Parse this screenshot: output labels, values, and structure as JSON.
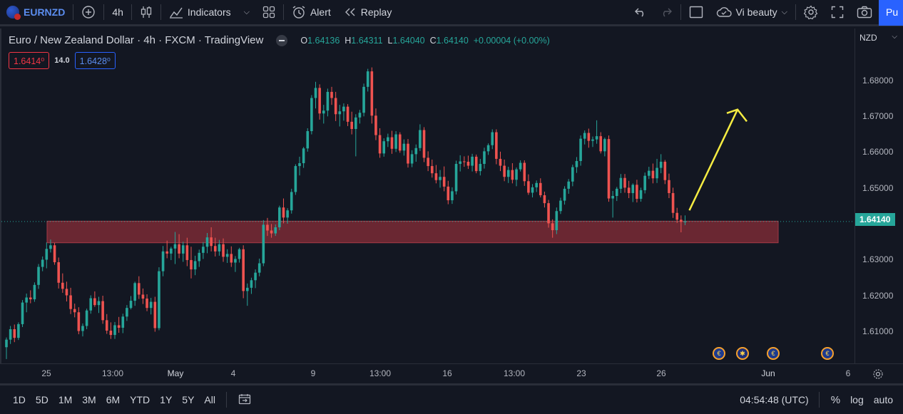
{
  "toolbar": {
    "symbol": "EURNZD",
    "interval": "4h",
    "indicators_label": "Indicators",
    "alert_label": "Alert",
    "replay_label": "Replay",
    "layout_name": "Vi beauty",
    "publish_label": "Pu"
  },
  "legend": {
    "title": "Euro / New Zealand Dollar · 4h · FXCM · TradingView",
    "o_label": "O",
    "o_value": "1.64136",
    "h_label": "H",
    "h_value": "1.64311",
    "l_label": "L",
    "l_value": "1.64040",
    "c_label": "C",
    "c_value": "1.64140",
    "change": "+0.00004 (+0.00%)",
    "sell_price": "1.6414⁰",
    "spread": "14.0",
    "buy_price": "1.6428⁰"
  },
  "price_axis": {
    "currency": "NZD",
    "current_price": "1.64140",
    "labels": [
      "1.68000",
      "1.67000",
      "1.66000",
      "1.65000",
      "1.63000",
      "1.62000",
      "1.61000"
    ]
  },
  "time_axis": {
    "labels": [
      "25",
      "13:00",
      "May",
      "4",
      "9",
      "13:00",
      "16",
      "13:00",
      "23",
      "26",
      "Jun",
      "6"
    ]
  },
  "bottom_bar": {
    "ranges": [
      "1D",
      "5D",
      "1M",
      "3M",
      "6M",
      "YTD",
      "1Y",
      "5Y",
      "All"
    ],
    "clock": "04:54:48 (UTC)",
    "percent_label": "%",
    "log_label": "log",
    "auto_label": "auto"
  },
  "colors": {
    "up": "#26a69a",
    "down": "#ef5350",
    "zone": "#7a2a35",
    "arrow": "#f5ec42",
    "accent": "#2962ff"
  },
  "chart_data": {
    "type": "candlestick",
    "symbol": "EURNZD",
    "ylim": [
      1.602,
      1.695
    ],
    "zone": [
      1.6355,
      1.6415
    ],
    "last_close": 1.6414,
    "candles": [
      [
        1.6065,
        1.6092,
        1.6032,
        1.6086
      ],
      [
        1.6086,
        1.6124,
        1.6074,
        1.6115
      ],
      [
        1.6115,
        1.6128,
        1.6079,
        1.6091
      ],
      [
        1.6091,
        1.6134,
        1.6085,
        1.6129
      ],
      [
        1.6129,
        1.6196,
        1.6121,
        1.6189
      ],
      [
        1.6189,
        1.6214,
        1.6162,
        1.6203
      ],
      [
        1.6203,
        1.6223,
        1.6187,
        1.6198
      ],
      [
        1.6198,
        1.6245,
        1.6191,
        1.6238
      ],
      [
        1.6238,
        1.6296,
        1.6227,
        1.6288
      ],
      [
        1.6288,
        1.6317,
        1.6276,
        1.6308
      ],
      [
        1.6308,
        1.6356,
        1.6284,
        1.6338
      ],
      [
        1.6338,
        1.6364,
        1.6328,
        1.6348
      ],
      [
        1.6348,
        1.6355,
        1.6294,
        1.6301
      ],
      [
        1.6301,
        1.6314,
        1.6228,
        1.6244
      ],
      [
        1.6244,
        1.627,
        1.6216,
        1.6227
      ],
      [
        1.6227,
        1.6247,
        1.6192,
        1.6209
      ],
      [
        1.6209,
        1.623,
        1.6157,
        1.6171
      ],
      [
        1.6171,
        1.6186,
        1.6148,
        1.6162
      ],
      [
        1.6162,
        1.6176,
        1.6101,
        1.611
      ],
      [
        1.611,
        1.6131,
        1.6095,
        1.6124
      ],
      [
        1.6124,
        1.6172,
        1.6115,
        1.6167
      ],
      [
        1.6167,
        1.6209,
        1.6158,
        1.6201
      ],
      [
        1.6201,
        1.622,
        1.6177,
        1.6182
      ],
      [
        1.6182,
        1.6205,
        1.616,
        1.6193
      ],
      [
        1.6193,
        1.6208,
        1.613,
        1.614
      ],
      [
        1.614,
        1.6157,
        1.6102,
        1.6111
      ],
      [
        1.6111,
        1.6134,
        1.6088,
        1.6099
      ],
      [
        1.6099,
        1.6135,
        1.6088,
        1.6126
      ],
      [
        1.6126,
        1.6149,
        1.6105,
        1.6119
      ],
      [
        1.6119,
        1.6158,
        1.6104,
        1.615
      ],
      [
        1.615,
        1.6182,
        1.6138,
        1.6174
      ],
      [
        1.6174,
        1.6207,
        1.617,
        1.6194
      ],
      [
        1.6194,
        1.6247,
        1.618,
        1.6243
      ],
      [
        1.6243,
        1.6262,
        1.6199,
        1.6211
      ],
      [
        1.6211,
        1.6228,
        1.6185,
        1.62
      ],
      [
        1.62,
        1.6212,
        1.6165,
        1.6174
      ],
      [
        1.6174,
        1.6202,
        1.6156,
        1.6191
      ],
      [
        1.6191,
        1.6205,
        1.6108,
        1.6118
      ],
      [
        1.6118,
        1.6287,
        1.6112,
        1.6276
      ],
      [
        1.6276,
        1.6346,
        1.6262,
        1.6331
      ],
      [
        1.6331,
        1.6361,
        1.6312,
        1.6325
      ],
      [
        1.6325,
        1.6344,
        1.6307,
        1.6339
      ],
      [
        1.6339,
        1.6385,
        1.6296,
        1.6351
      ],
      [
        1.6351,
        1.6379,
        1.6312,
        1.6325
      ],
      [
        1.6325,
        1.6358,
        1.6302,
        1.6348
      ],
      [
        1.6348,
        1.6369,
        1.629,
        1.6307
      ],
      [
        1.6307,
        1.6344,
        1.6256,
        1.6281
      ],
      [
        1.6281,
        1.6319,
        1.6265,
        1.6304
      ],
      [
        1.6304,
        1.6336,
        1.6288,
        1.6327
      ],
      [
        1.6327,
        1.6357,
        1.631,
        1.6344
      ],
      [
        1.6344,
        1.6382,
        1.6326,
        1.637
      ],
      [
        1.637,
        1.6398,
        1.6331,
        1.6346
      ],
      [
        1.6346,
        1.6369,
        1.6317,
        1.6331
      ],
      [
        1.6331,
        1.6363,
        1.6319,
        1.6351
      ],
      [
        1.6351,
        1.6367,
        1.6302,
        1.6316
      ],
      [
        1.6316,
        1.6337,
        1.6299,
        1.6324
      ],
      [
        1.6324,
        1.6345,
        1.6288,
        1.63
      ],
      [
        1.63,
        1.6318,
        1.6274,
        1.631
      ],
      [
        1.631,
        1.6341,
        1.63,
        1.6337
      ],
      [
        1.6337,
        1.6348,
        1.6201,
        1.6221
      ],
      [
        1.6221,
        1.6242,
        1.618,
        1.623
      ],
      [
        1.623,
        1.6258,
        1.6213,
        1.6251
      ],
      [
        1.6251,
        1.6281,
        1.6229,
        1.6272
      ],
      [
        1.6272,
        1.6311,
        1.6262,
        1.6298
      ],
      [
        1.6298,
        1.6418,
        1.629,
        1.6405
      ],
      [
        1.6405,
        1.6424,
        1.6374,
        1.6389
      ],
      [
        1.6389,
        1.6407,
        1.6369,
        1.6381
      ],
      [
        1.6381,
        1.6406,
        1.6374,
        1.6398
      ],
      [
        1.6398,
        1.6458,
        1.639,
        1.6453
      ],
      [
        1.6453,
        1.6478,
        1.6409,
        1.6425
      ],
      [
        1.6425,
        1.6451,
        1.6408,
        1.6445
      ],
      [
        1.6445,
        1.6505,
        1.6436,
        1.6496
      ],
      [
        1.6496,
        1.6573,
        1.6488,
        1.6568
      ],
      [
        1.6568,
        1.6594,
        1.6542,
        1.6576
      ],
      [
        1.6576,
        1.6621,
        1.6563,
        1.6617
      ],
      [
        1.6617,
        1.6673,
        1.6608,
        1.6665
      ],
      [
        1.6665,
        1.6765,
        1.6656,
        1.6757
      ],
      [
        1.6757,
        1.6802,
        1.6728,
        1.6785
      ],
      [
        1.6785,
        1.6795,
        1.6697,
        1.6714
      ],
      [
        1.6714,
        1.6738,
        1.6686,
        1.6722
      ],
      [
        1.6722,
        1.6783,
        1.6706,
        1.6774
      ],
      [
        1.6774,
        1.6788,
        1.6738,
        1.6757
      ],
      [
        1.6757,
        1.6774,
        1.6693,
        1.6712
      ],
      [
        1.6712,
        1.6738,
        1.6678,
        1.672
      ],
      [
        1.672,
        1.6742,
        1.6694,
        1.6733
      ],
      [
        1.6733,
        1.674,
        1.6679,
        1.6691
      ],
      [
        1.6691,
        1.6719,
        1.6656,
        1.6671
      ],
      [
        1.6671,
        1.6712,
        1.6595,
        1.6703
      ],
      [
        1.6703,
        1.6724,
        1.6686,
        1.6716
      ],
      [
        1.6716,
        1.6797,
        1.6706,
        1.6788
      ],
      [
        1.6788,
        1.6838,
        1.6775,
        1.6831
      ],
      [
        1.6831,
        1.6842,
        1.6686,
        1.6708
      ],
      [
        1.6708,
        1.6728,
        1.664,
        1.6654
      ],
      [
        1.6654,
        1.6673,
        1.6591,
        1.6603
      ],
      [
        1.6603,
        1.6645,
        1.6594,
        1.6637
      ],
      [
        1.6637,
        1.6658,
        1.6621,
        1.6648
      ],
      [
        1.6648,
        1.6666,
        1.6602,
        1.6616
      ],
      [
        1.6616,
        1.6665,
        1.6607,
        1.6656
      ],
      [
        1.6656,
        1.6662,
        1.6605,
        1.6611
      ],
      [
        1.6611,
        1.6642,
        1.6597,
        1.663
      ],
      [
        1.663,
        1.6643,
        1.6564,
        1.6575
      ],
      [
        1.6575,
        1.6612,
        1.6565,
        1.6601
      ],
      [
        1.6601,
        1.6628,
        1.658,
        1.6618
      ],
      [
        1.6618,
        1.6684,
        1.661,
        1.6668
      ],
      [
        1.6668,
        1.6676,
        1.6579,
        1.6591
      ],
      [
        1.6591,
        1.6609,
        1.6554,
        1.6568
      ],
      [
        1.6568,
        1.6586,
        1.6536,
        1.6548
      ],
      [
        1.6548,
        1.6571,
        1.652,
        1.6529
      ],
      [
        1.6529,
        1.6557,
        1.6508,
        1.6538
      ],
      [
        1.6538,
        1.6567,
        1.6498,
        1.6511
      ],
      [
        1.6511,
        1.6527,
        1.6462,
        1.6473
      ],
      [
        1.6473,
        1.6509,
        1.6463,
        1.6498
      ],
      [
        1.6498,
        1.6583,
        1.6489,
        1.6574
      ],
      [
        1.6574,
        1.6598,
        1.6553,
        1.6581
      ],
      [
        1.6581,
        1.6595,
        1.6566,
        1.658
      ],
      [
        1.658,
        1.6597,
        1.656,
        1.6569
      ],
      [
        1.6569,
        1.6602,
        1.6553,
        1.6594
      ],
      [
        1.6594,
        1.66,
        1.6548,
        1.6554
      ],
      [
        1.6554,
        1.6588,
        1.6542,
        1.6574
      ],
      [
        1.6574,
        1.6619,
        1.6561,
        1.6609
      ],
      [
        1.6609,
        1.6631,
        1.6599,
        1.6626
      ],
      [
        1.6626,
        1.667,
        1.6615,
        1.6662
      ],
      [
        1.6662,
        1.667,
        1.6573,
        1.6588
      ],
      [
        1.6588,
        1.6608,
        1.6554,
        1.6569
      ],
      [
        1.6569,
        1.6586,
        1.6526,
        1.6538
      ],
      [
        1.6538,
        1.6566,
        1.6521,
        1.6557
      ],
      [
        1.6557,
        1.6576,
        1.652,
        1.653
      ],
      [
        1.653,
        1.6564,
        1.6512,
        1.6559
      ],
      [
        1.6559,
        1.6584,
        1.6553,
        1.6577
      ],
      [
        1.6577,
        1.6584,
        1.6513,
        1.6526
      ],
      [
        1.6526,
        1.6545,
        1.6488,
        1.6494
      ],
      [
        1.6494,
        1.6518,
        1.6481,
        1.6509
      ],
      [
        1.6509,
        1.6528,
        1.6496,
        1.6521
      ],
      [
        1.6521,
        1.6534,
        1.6481,
        1.6487
      ],
      [
        1.6487,
        1.6497,
        1.6453,
        1.6465
      ],
      [
        1.6465,
        1.6474,
        1.6397,
        1.6409
      ],
      [
        1.6409,
        1.642,
        1.6369,
        1.639
      ],
      [
        1.639,
        1.6453,
        1.6379,
        1.6443
      ],
      [
        1.6443,
        1.648,
        1.6435,
        1.6472
      ],
      [
        1.6472,
        1.6512,
        1.6461,
        1.6505
      ],
      [
        1.6505,
        1.6532,
        1.6491,
        1.6525
      ],
      [
        1.6525,
        1.6572,
        1.6512,
        1.6565
      ],
      [
        1.6565,
        1.6593,
        1.6549,
        1.6582
      ],
      [
        1.6582,
        1.6653,
        1.6569,
        1.6644
      ],
      [
        1.6644,
        1.6667,
        1.6628,
        1.666
      ],
      [
        1.666,
        1.6672,
        1.6619,
        1.6638
      ],
      [
        1.6638,
        1.665,
        1.6621,
        1.6642
      ],
      [
        1.6642,
        1.6695,
        1.663,
        1.6651
      ],
      [
        1.6651,
        1.6662,
        1.6603,
        1.6609
      ],
      [
        1.6609,
        1.6647,
        1.6595,
        1.6643
      ],
      [
        1.6643,
        1.6653,
        1.6469,
        1.6478
      ],
      [
        1.6478,
        1.6499,
        1.6425,
        1.6485
      ],
      [
        1.6485,
        1.651,
        1.6471,
        1.6505
      ],
      [
        1.6505,
        1.6546,
        1.6493,
        1.6535
      ],
      [
        1.6535,
        1.6546,
        1.6494,
        1.6508
      ],
      [
        1.6508,
        1.6527,
        1.6479,
        1.6493
      ],
      [
        1.6493,
        1.652,
        1.6468,
        1.6516
      ],
      [
        1.6516,
        1.653,
        1.6467,
        1.6477
      ],
      [
        1.6477,
        1.6508,
        1.6469,
        1.6501
      ],
      [
        1.6501,
        1.655,
        1.6492,
        1.6541
      ],
      [
        1.6541,
        1.6566,
        1.6532,
        1.6555
      ],
      [
        1.6555,
        1.6575,
        1.652,
        1.6534
      ],
      [
        1.6534,
        1.6588,
        1.6521,
        1.6563
      ],
      [
        1.6563,
        1.6601,
        1.6548,
        1.658
      ],
      [
        1.658,
        1.6585,
        1.6518,
        1.6529
      ],
      [
        1.6529,
        1.6547,
        1.6479,
        1.6493
      ],
      [
        1.6493,
        1.6508,
        1.6424,
        1.6438
      ],
      [
        1.6438,
        1.6452,
        1.641,
        1.6419
      ],
      [
        1.6419,
        1.6431,
        1.6384,
        1.6413
      ],
      [
        1.6413,
        1.6431,
        1.6404,
        1.6414
      ]
    ],
    "annotation": "arrow pointing up"
  }
}
